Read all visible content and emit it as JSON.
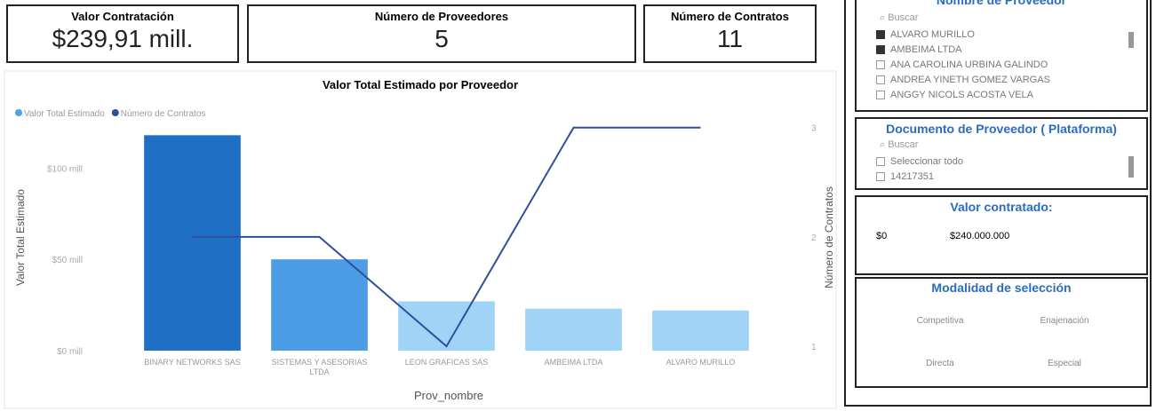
{
  "cards": [
    {
      "title": "Valor Contratación",
      "value": "$239,91 mill."
    },
    {
      "title": "Número de Proveedores",
      "value": "5"
    },
    {
      "title": "Número de Contratos",
      "value": "11"
    }
  ],
  "chart_data": {
    "type": "combo",
    "title": "Valor Total Estimado por Proveedor",
    "categories": [
      "BINARY NETWORKS SAS",
      "SISTEMAS Y ASESORIAS LTDA",
      "LEON GRAFICAS SAS",
      "AMBEIMA LTDA",
      "ALVARO MURILLO"
    ],
    "series": [
      {
        "name": "Valor Total Estimado",
        "color": "#4aa3e8",
        "bar_colors": [
          "#1f70c4",
          "#4c9ce6",
          "#9fd4f6",
          "#9fd4f6",
          "#9fd4f6"
        ],
        "values": [
          118,
          50,
          27,
          23,
          22
        ]
      },
      {
        "name": "Número de Contratos",
        "color": "#2c4f9e",
        "axis": "y2",
        "values": [
          2,
          2,
          1,
          3,
          3
        ]
      }
    ],
    "x_label": "Prov_nombre",
    "y_label": "Valor Total Estimado",
    "y2_label": "Número de Contratos",
    "ylim": [
      0,
      124
    ],
    "yticks": [
      {
        "value": 0,
        "label": "$0 mill"
      },
      {
        "value": 50,
        "label": "$50 mill"
      },
      {
        "value": 100,
        "label": "$100 mill"
      }
    ],
    "y2lim": [
      0.96,
      3.03
    ],
    "y2ticks": [
      1,
      2,
      3
    ],
    "legend": "top-left"
  },
  "slicers": {
    "proveedor": {
      "title": "Nombre de Proveedor",
      "search": "Buscar",
      "items": [
        {
          "label": "ALVARO MURILLO",
          "checked": true
        },
        {
          "label": "AMBEIMA LTDA",
          "checked": true
        },
        {
          "label": "ANA CAROLINA URBINA GALINDO",
          "checked": false
        },
        {
          "label": "ANDREA YINETH GOMEZ VARGAS",
          "checked": false
        },
        {
          "label": "ANGGY NICOLS ACOSTA VELA",
          "checked": false
        }
      ]
    },
    "documento": {
      "title": "Documento de Proveedor ( Plataforma)",
      "search": "Buscar",
      "items": [
        {
          "label": "Seleccionar todo",
          "checked": false
        },
        {
          "label": "14217351",
          "checked": false
        }
      ]
    },
    "valor": {
      "title": "Valor contratado:",
      "min": "$0",
      "max": "$240.000.000"
    },
    "modalidad": {
      "title": "Modalidad de selección",
      "options": [
        "Competitiva",
        "Enajenación",
        "Directa",
        "Especial"
      ]
    }
  }
}
